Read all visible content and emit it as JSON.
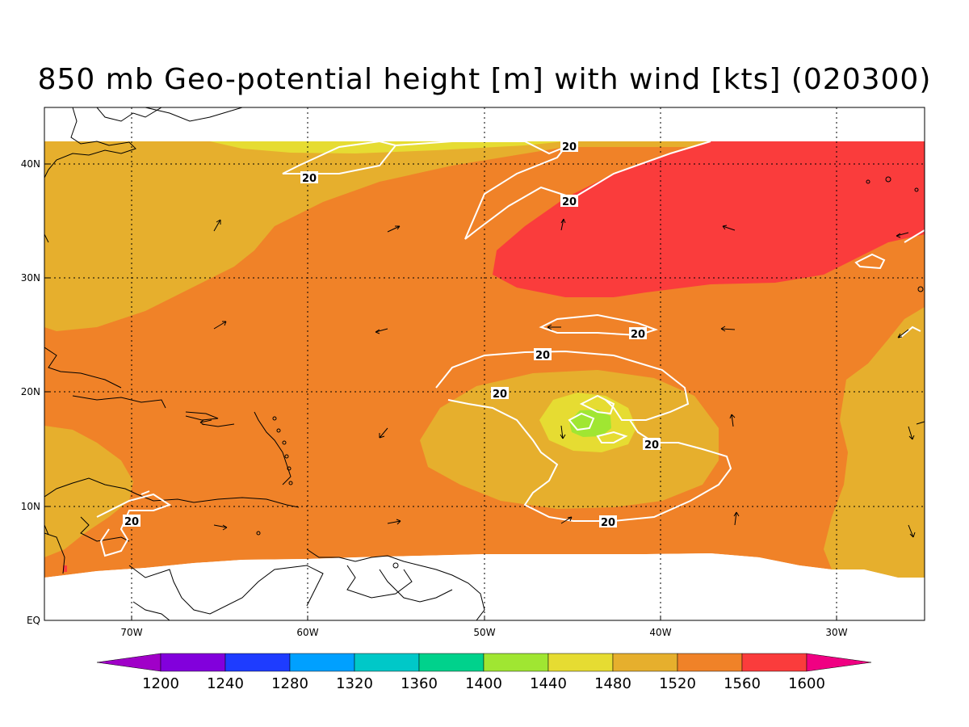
{
  "title": "850 mb Geo-potential height [m] with wind [kts] (020300)",
  "map": {
    "lon_ticks": [
      "70W",
      "60W",
      "50W",
      "40W",
      "30W"
    ],
    "lat_ticks": [
      "40N",
      "30N",
      "20N",
      "10N",
      "EQ"
    ],
    "lon_range": [
      -75,
      -25
    ],
    "lat_range": [
      0,
      45
    ],
    "grid": true
  },
  "fill_colors": {
    "h1480": "#e6dc32",
    "h1520": "#e6af2d",
    "h1560": "#f08228",
    "h1600": "#fa3c3c",
    "h1440": "#a0e632",
    "missing": "#ffffff"
  },
  "contour_labels": [
    "20",
    "20",
    "20",
    "20",
    "20",
    "20",
    "20",
    "20",
    "20"
  ],
  "colorbar": {
    "labels": [
      "1200",
      "1240",
      "1280",
      "1320",
      "1360",
      "1400",
      "1440",
      "1480",
      "1520",
      "1560",
      "1600"
    ],
    "colors": [
      "#a000c8",
      "#8200dc",
      "#1e3cff",
      "#00a0ff",
      "#00c8c8",
      "#00d28c",
      "#a0e632",
      "#e6dc32",
      "#e6af2d",
      "#f08228",
      "#fa3c3c",
      "#f00082"
    ]
  }
}
